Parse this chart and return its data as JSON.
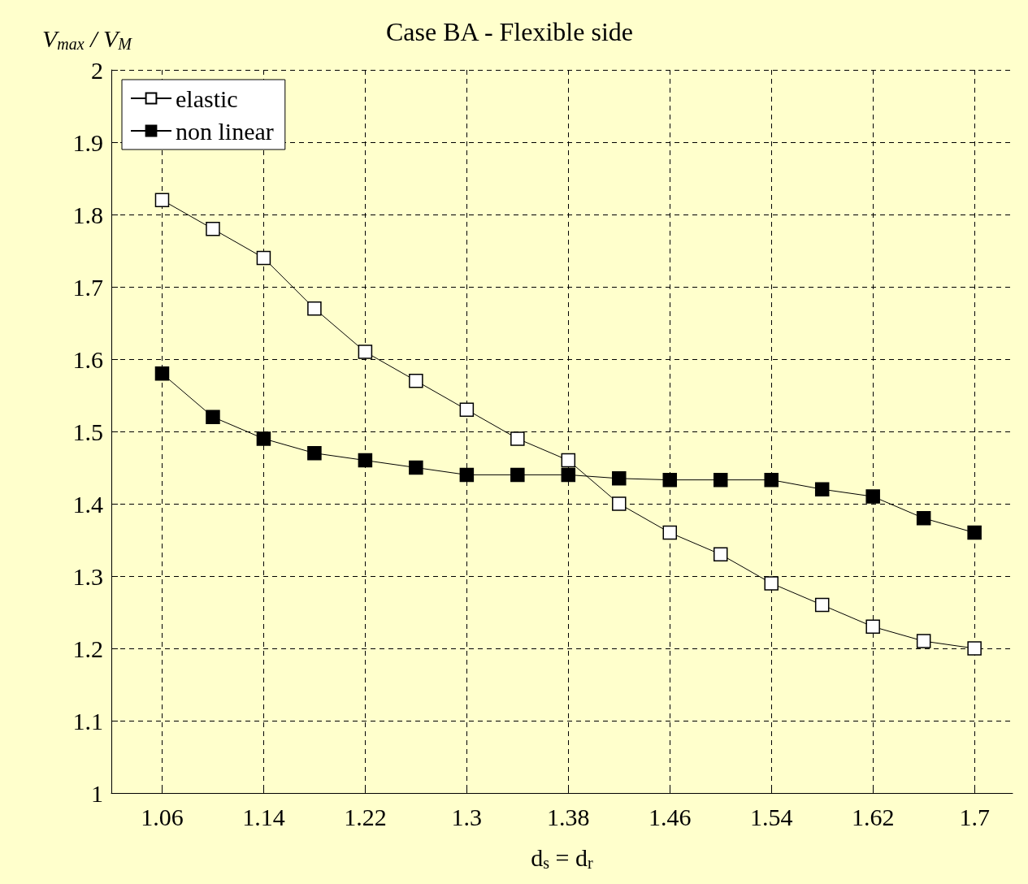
{
  "chart_data": {
    "type": "line",
    "title": "Case BA - Flexible side",
    "xlabel": "d$_{s}$ = d$_{r}$",
    "ylabel": "V$_{max}$ / V$_{M}$",
    "x": [
      1.06,
      1.1,
      1.14,
      1.18,
      1.22,
      1.26,
      1.3,
      1.34,
      1.38,
      1.42,
      1.46,
      1.5,
      1.54,
      1.58,
      1.62,
      1.66,
      1.7
    ],
    "series": [
      {
        "name": "elastic",
        "color": "#ffffff",
        "values": [
          1.82,
          1.78,
          1.74,
          1.67,
          1.61,
          1.57,
          1.53,
          1.49,
          1.46,
          1.4,
          1.36,
          1.33,
          1.29,
          1.26,
          1.23,
          1.21,
          1.2
        ]
      },
      {
        "name": "non linear",
        "color": "#000000",
        "values": [
          1.58,
          1.52,
          1.49,
          1.47,
          1.46,
          1.45,
          1.44,
          1.44,
          1.44,
          1.435,
          1.433,
          1.433,
          1.433,
          1.42,
          1.41,
          1.38,
          1.36
        ]
      }
    ],
    "xlim": [
      1.02,
      1.73
    ],
    "xticks": [
      1.06,
      1.14,
      1.22,
      1.3,
      1.38,
      1.46,
      1.54,
      1.62,
      1.7
    ],
    "ylim": [
      1,
      2
    ],
    "yticks": [
      1,
      1.1,
      1.2,
      1.3,
      1.4,
      1.5,
      1.6,
      1.7,
      1.8,
      1.9,
      2
    ],
    "grid": true,
    "legend": "top left",
    "marker": "square",
    "line_style": "solid"
  }
}
